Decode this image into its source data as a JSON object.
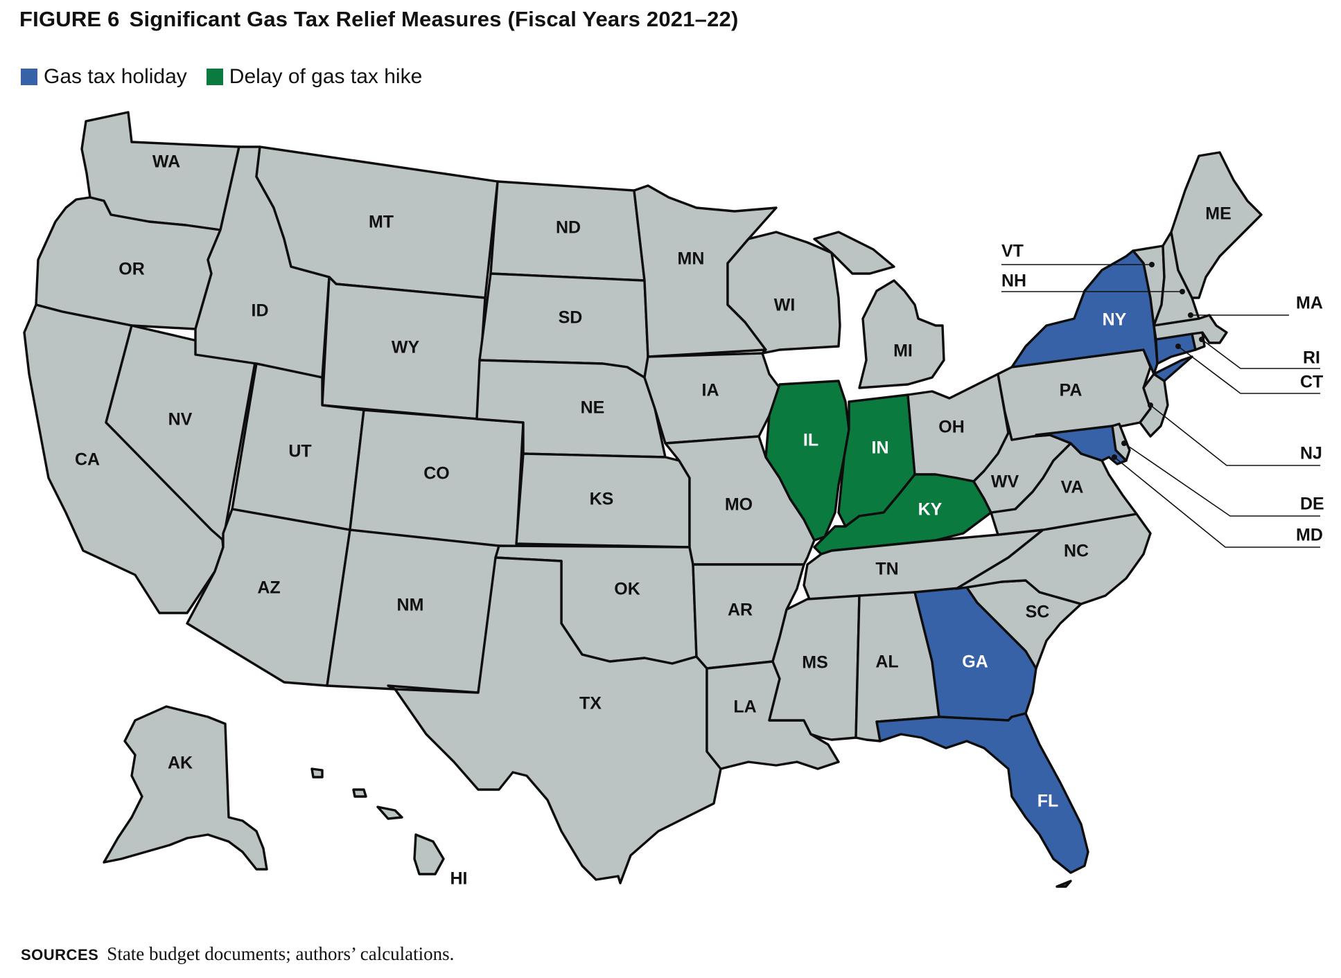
{
  "title": {
    "figure": "FIGURE 6",
    "text": "Significant Gas Tax Relief Measures (Fiscal Years 2021–22)"
  },
  "legend": [
    {
      "label": "Gas tax holiday",
      "color": "#3862a8"
    },
    {
      "label": "Delay of gas tax hike",
      "color": "#0b7a3e"
    }
  ],
  "colors": {
    "default_state": "#bcc3c3",
    "gas_tax_holiday": "#3862a8",
    "delay_of_gas_tax_hike": "#0b7a3e"
  },
  "states": {
    "WA": "none",
    "OR": "none",
    "CA": "none",
    "ID": "none",
    "NV": "none",
    "MT": "none",
    "WY": "none",
    "UT": "none",
    "AZ": "none",
    "CO": "none",
    "NM": "none",
    "ND": "none",
    "SD": "none",
    "NE": "none",
    "KS": "none",
    "OK": "none",
    "TX": "none",
    "MN": "none",
    "IA": "none",
    "MO": "none",
    "AR": "none",
    "LA": "none",
    "WI": "none",
    "IL": "delay",
    "MI": "none",
    "IN": "delay",
    "OH": "none",
    "KY": "delay",
    "TN": "none",
    "MS": "none",
    "AL": "none",
    "GA": "holiday",
    "FL": "holiday",
    "SC": "none",
    "NC": "none",
    "VA": "none",
    "WV": "none",
    "PA": "none",
    "NY": "holiday",
    "NJ": "none",
    "DE": "none",
    "MD": "holiday",
    "CT": "holiday",
    "RI": "none",
    "MA": "none",
    "VT": "none",
    "NH": "none",
    "ME": "none",
    "AK": "none",
    "HI": "none"
  },
  "labels": {
    "WA": "WA",
    "OR": "OR",
    "CA": "CA",
    "ID": "ID",
    "NV": "NV",
    "MT": "MT",
    "WY": "WY",
    "UT": "UT",
    "AZ": "AZ",
    "CO": "CO",
    "NM": "NM",
    "ND": "ND",
    "SD": "SD",
    "NE": "NE",
    "KS": "KS",
    "OK": "OK",
    "TX": "TX",
    "MN": "MN",
    "IA": "IA",
    "MO": "MO",
    "AR": "AR",
    "LA": "LA",
    "WI": "WI",
    "IL": "IL",
    "MI": "MI",
    "IN": "IN",
    "OH": "OH",
    "KY": "KY",
    "TN": "TN",
    "MS": "MS",
    "AL": "AL",
    "GA": "GA",
    "FL": "FL",
    "SC": "SC",
    "NC": "NC",
    "VA": "VA",
    "WV": "WV",
    "PA": "PA",
    "NY": "NY",
    "ME": "ME",
    "AK": "AK",
    "HI": "HI",
    "VT": "VT",
    "NH": "NH",
    "MA": "MA",
    "RI": "RI",
    "CT": "CT",
    "NJ": "NJ",
    "DE": "DE",
    "MD": "MD"
  },
  "sources": {
    "label": "SOURCES",
    "text": "State budget documents; authors’ calculations."
  }
}
